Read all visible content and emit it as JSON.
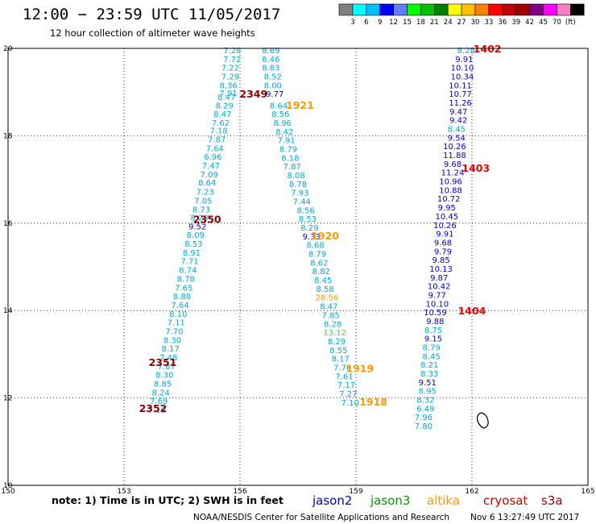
{
  "header": {
    "title": "12:00 − 23:59 UTC 11/05/2017",
    "subtitle": "12 hour collection of altimeter wave heights"
  },
  "colorbar": {
    "colors": [
      "#808080",
      "#00ffff",
      "#00bfff",
      "#0000ff",
      "#6080ff",
      "#00ff00",
      "#00c000",
      "#008000",
      "#ffff00",
      "#ffc000",
      "#ff8000",
      "#ff0000",
      "#c00000",
      "#a00000",
      "#800080",
      "#ff00ff",
      "#ff80c0",
      "#000000"
    ],
    "labels": [
      "3",
      "6",
      "9",
      "12",
      "15",
      "18",
      "21",
      "24",
      "27",
      "30",
      "33",
      "36",
      "39",
      "42",
      "45",
      "70",
      "(ft)"
    ]
  },
  "footer": {
    "note": "note:  1) Time is in UTC;  2) SWH is in feet",
    "satellites": [
      {
        "name": "jason2",
        "color": "#0000cc"
      },
      {
        "name": "jason3",
        "color": "#009900"
      },
      {
        "name": "altika",
        "color": "#ff9900"
      },
      {
        "name": "cryosat",
        "color": "#cc0000"
      },
      {
        "name": "s3a",
        "color": "#990000"
      }
    ],
    "credit": "NOAA/NESDIS Center for Satellite Applications and Research",
    "timestamp": "Nov  6 13:27:49 UTC 2017"
  },
  "chart_data": {
    "type": "scatter",
    "xlim": [
      150,
      165
    ],
    "ylim": [
      10,
      20
    ],
    "x_ticks": [
      "150",
      "153",
      "156",
      "159",
      "162",
      "165"
    ],
    "y_ticks": [
      "10",
      "12",
      "14",
      "16",
      "18",
      "20"
    ],
    "grid": true,
    "colors": {
      "light": "#00aadd",
      "dark": "#0000cc",
      "green": "#44dd44",
      "orange": "#ff9900",
      "cyosat": "#ee0000",
      "s3a": "#880000"
    },
    "series": [
      {
        "name": "s3a",
        "color": "#00aadd",
        "points": [
          {
            "x": 155.8,
            "y": 19.89,
            "v": "7.28",
            "c": "light"
          },
          {
            "x": 155.8,
            "y": 19.69,
            "v": "7.72",
            "c": "light"
          },
          {
            "x": 155.75,
            "y": 19.49,
            "v": "7.22",
            "c": "light"
          },
          {
            "x": 155.75,
            "y": 19.29,
            "v": "7.29",
            "c": "light"
          },
          {
            "x": 155.7,
            "y": 19.09,
            "v": "8.36",
            "c": "light"
          },
          {
            "x": 155.7,
            "y": 18.91,
            "v": "7.91",
            "c": "light"
          },
          {
            "x": 155.65,
            "y": 18.82,
            "v": "8.47",
            "c": "light"
          },
          {
            "x": 155.6,
            "y": 18.63,
            "v": "8.29",
            "c": "light"
          },
          {
            "x": 155.55,
            "y": 18.43,
            "v": "8.47",
            "c": "light"
          },
          {
            "x": 155.5,
            "y": 18.23,
            "v": "7.62",
            "c": "light"
          },
          {
            "x": 155.45,
            "y": 18.05,
            "v": "7.18",
            "c": "light"
          },
          {
            "x": 155.4,
            "y": 17.85,
            "v": "7.87",
            "c": "light"
          },
          {
            "x": 155.35,
            "y": 17.65,
            "v": "7.64",
            "c": "light"
          },
          {
            "x": 155.3,
            "y": 17.45,
            "v": "6.96",
            "c": "light"
          },
          {
            "x": 155.25,
            "y": 17.25,
            "v": "7.47",
            "c": "light"
          },
          {
            "x": 155.2,
            "y": 17.05,
            "v": "7.09",
            "c": "light"
          },
          {
            "x": 155.15,
            "y": 16.86,
            "v": "8.64",
            "c": "light"
          },
          {
            "x": 155.1,
            "y": 16.65,
            "v": "7.23",
            "c": "light"
          },
          {
            "x": 155.05,
            "y": 16.45,
            "v": "7.05",
            "c": "light"
          },
          {
            "x": 155.0,
            "y": 16.25,
            "v": "8.73",
            "c": "light"
          },
          {
            "x": 154.95,
            "y": 16.06,
            "v": "8.23",
            "c": "light"
          },
          {
            "x": 154.9,
            "y": 15.86,
            "v": "9.52",
            "c": "dark"
          },
          {
            "x": 154.85,
            "y": 15.66,
            "v": "8.09",
            "c": "light"
          },
          {
            "x": 154.8,
            "y": 15.46,
            "v": "8.53",
            "c": "light"
          },
          {
            "x": 154.75,
            "y": 15.26,
            "v": "8.91",
            "c": "light"
          },
          {
            "x": 154.7,
            "y": 15.06,
            "v": "7.71",
            "c": "light"
          },
          {
            "x": 154.65,
            "y": 14.86,
            "v": "8.74",
            "c": "light"
          },
          {
            "x": 154.6,
            "y": 14.66,
            "v": "8.78",
            "c": "light"
          },
          {
            "x": 154.55,
            "y": 14.46,
            "v": "7.65",
            "c": "light"
          },
          {
            "x": 154.5,
            "y": 14.26,
            "v": "8.88",
            "c": "light"
          },
          {
            "x": 154.45,
            "y": 14.06,
            "v": "7.64",
            "c": "light"
          },
          {
            "x": 154.4,
            "y": 13.86,
            "v": "8.10",
            "c": "light"
          },
          {
            "x": 154.35,
            "y": 13.66,
            "v": "7.11",
            "c": "light"
          },
          {
            "x": 154.3,
            "y": 13.46,
            "v": "7.70",
            "c": "light"
          },
          {
            "x": 154.25,
            "y": 13.26,
            "v": "8.30",
            "c": "light"
          },
          {
            "x": 154.2,
            "y": 13.06,
            "v": "8.17",
            "c": "light"
          },
          {
            "x": 154.15,
            "y": 12.86,
            "v": "7.48",
            "c": "light"
          },
          {
            "x": 154.1,
            "y": 12.66,
            "v": "7.87",
            "c": "light"
          },
          {
            "x": 154.05,
            "y": 12.46,
            "v": "8.30",
            "c": "light"
          },
          {
            "x": 154.0,
            "y": 12.26,
            "v": "8.85",
            "c": "light"
          },
          {
            "x": 153.95,
            "y": 12.06,
            "v": "8.24",
            "c": "light"
          },
          {
            "x": 153.9,
            "y": 11.86,
            "v": "7.69",
            "c": "light"
          },
          {
            "x": 153.85,
            "y": 11.66,
            "v": "7.16",
            "c": "light"
          }
        ]
      },
      {
        "name": "altika",
        "color": "#00aadd",
        "points": [
          {
            "x": 156.8,
            "y": 19.89,
            "v": "8.69",
            "c": "light"
          },
          {
            "x": 156.8,
            "y": 19.69,
            "v": "8.46",
            "c": "light"
          },
          {
            "x": 156.8,
            "y": 19.49,
            "v": "8.83",
            "c": "light"
          },
          {
            "x": 156.85,
            "y": 19.29,
            "v": "8.52",
            "c": "light"
          },
          {
            "x": 156.85,
            "y": 19.09,
            "v": "8.00",
            "c": "light"
          },
          {
            "x": 156.9,
            "y": 18.89,
            "v": "9.77",
            "c": "dark"
          },
          {
            "x": 157.0,
            "y": 18.63,
            "v": "8.64",
            "c": "light"
          },
          {
            "x": 157.05,
            "y": 18.43,
            "v": "8.56",
            "c": "light"
          },
          {
            "x": 157.1,
            "y": 18.23,
            "v": "8.96",
            "c": "light"
          },
          {
            "x": 157.15,
            "y": 18.03,
            "v": "8.42",
            "c": "light"
          },
          {
            "x": 157.2,
            "y": 17.83,
            "v": "7.91",
            "c": "light"
          },
          {
            "x": 157.25,
            "y": 17.63,
            "v": "8.79",
            "c": "light"
          },
          {
            "x": 157.3,
            "y": 17.43,
            "v": "8.18",
            "c": "light"
          },
          {
            "x": 157.35,
            "y": 17.23,
            "v": "7.87",
            "c": "light"
          },
          {
            "x": 157.45,
            "y": 17.03,
            "v": "8.08",
            "c": "light"
          },
          {
            "x": 157.5,
            "y": 16.83,
            "v": "8.78",
            "c": "light"
          },
          {
            "x": 157.55,
            "y": 16.63,
            "v": "7.93",
            "c": "light"
          },
          {
            "x": 157.6,
            "y": 16.43,
            "v": "7.44",
            "c": "light"
          },
          {
            "x": 157.7,
            "y": 16.23,
            "v": "8.56",
            "c": "light"
          },
          {
            "x": 157.75,
            "y": 16.03,
            "v": "8.53",
            "c": "light"
          },
          {
            "x": 157.8,
            "y": 15.83,
            "v": "8.29",
            "c": "light"
          },
          {
            "x": 157.85,
            "y": 15.63,
            "v": "9.33",
            "c": "dark"
          },
          {
            "x": 157.95,
            "y": 15.43,
            "v": "8.68",
            "c": "light"
          },
          {
            "x": 158.0,
            "y": 15.23,
            "v": "8.79",
            "c": "light"
          },
          {
            "x": 158.05,
            "y": 15.03,
            "v": "8.62",
            "c": "light"
          },
          {
            "x": 158.1,
            "y": 14.83,
            "v": "8.82",
            "c": "light"
          },
          {
            "x": 158.15,
            "y": 14.63,
            "v": "8.45",
            "c": "light"
          },
          {
            "x": 158.2,
            "y": 14.43,
            "v": "8.58",
            "c": "light"
          },
          {
            "x": 158.25,
            "y": 14.23,
            "v": "28.56",
            "c": "orange"
          },
          {
            "x": 158.3,
            "y": 14.03,
            "v": "8.47",
            "c": "light"
          },
          {
            "x": 158.35,
            "y": 13.83,
            "v": "7.85",
            "c": "light"
          },
          {
            "x": 158.4,
            "y": 13.63,
            "v": "8.28",
            "c": "light"
          },
          {
            "x": 158.45,
            "y": 13.43,
            "v": "13.12",
            "c": "green"
          },
          {
            "x": 158.5,
            "y": 13.23,
            "v": "8.29",
            "c": "light"
          },
          {
            "x": 158.55,
            "y": 13.03,
            "v": "8.55",
            "c": "light"
          },
          {
            "x": 158.6,
            "y": 12.83,
            "v": "8.17",
            "c": "light"
          },
          {
            "x": 158.65,
            "y": 12.63,
            "v": "7.76",
            "c": "light"
          },
          {
            "x": 158.7,
            "y": 12.43,
            "v": "7.61",
            "c": "light"
          },
          {
            "x": 158.75,
            "y": 12.23,
            "v": "7.17",
            "c": "light"
          },
          {
            "x": 158.8,
            "y": 12.03,
            "v": "7.27",
            "c": "light"
          },
          {
            "x": 158.85,
            "y": 11.83,
            "v": "7.10",
            "c": "light"
          }
        ]
      },
      {
        "name": "cryosat",
        "color": "#0000cc",
        "points": [
          {
            "x": 161.85,
            "y": 19.89,
            "v": "8.28",
            "c": "light"
          },
          {
            "x": 161.8,
            "y": 19.69,
            "v": "9.91",
            "c": "dark"
          },
          {
            "x": 161.75,
            "y": 19.49,
            "v": "10.10",
            "c": "dark"
          },
          {
            "x": 161.75,
            "y": 19.29,
            "v": "10.34",
            "c": "dark"
          },
          {
            "x": 161.7,
            "y": 19.09,
            "v": "10.11",
            "c": "dark"
          },
          {
            "x": 161.7,
            "y": 18.89,
            "v": "10.77",
            "c": "dark"
          },
          {
            "x": 161.7,
            "y": 18.69,
            "v": "11.26",
            "c": "dark"
          },
          {
            "x": 161.65,
            "y": 18.49,
            "v": "9.47",
            "c": "dark"
          },
          {
            "x": 161.65,
            "y": 18.29,
            "v": "9.42",
            "c": "dark"
          },
          {
            "x": 161.6,
            "y": 18.09,
            "v": "8.45",
            "c": "light"
          },
          {
            "x": 161.6,
            "y": 17.89,
            "v": "9.54",
            "c": "dark"
          },
          {
            "x": 161.55,
            "y": 17.69,
            "v": "10.26",
            "c": "dark"
          },
          {
            "x": 161.55,
            "y": 17.49,
            "v": "11.88",
            "c": "dark"
          },
          {
            "x": 161.5,
            "y": 17.29,
            "v": "9.68",
            "c": "dark"
          },
          {
            "x": 161.5,
            "y": 17.09,
            "v": "11.24",
            "c": "dark"
          },
          {
            "x": 161.45,
            "y": 16.89,
            "v": "10.96",
            "c": "dark"
          },
          {
            "x": 161.45,
            "y": 16.69,
            "v": "10.88",
            "c": "dark"
          },
          {
            "x": 161.4,
            "y": 16.49,
            "v": "10.72",
            "c": "dark"
          },
          {
            "x": 161.35,
            "y": 16.29,
            "v": "9.95",
            "c": "dark"
          },
          {
            "x": 161.35,
            "y": 16.09,
            "v": "10.45",
            "c": "dark"
          },
          {
            "x": 161.3,
            "y": 15.89,
            "v": "10.26",
            "c": "dark"
          },
          {
            "x": 161.3,
            "y": 15.69,
            "v": "9.91",
            "c": "dark"
          },
          {
            "x": 161.25,
            "y": 15.49,
            "v": "9.68",
            "c": "dark"
          },
          {
            "x": 161.25,
            "y": 15.29,
            "v": "9.79",
            "c": "dark"
          },
          {
            "x": 161.2,
            "y": 15.09,
            "v": "9.85",
            "c": "dark"
          },
          {
            "x": 161.2,
            "y": 14.89,
            "v": "10.13",
            "c": "dark"
          },
          {
            "x": 161.15,
            "y": 14.69,
            "v": "9.87",
            "c": "dark"
          },
          {
            "x": 161.15,
            "y": 14.49,
            "v": "10.42",
            "c": "dark"
          },
          {
            "x": 161.1,
            "y": 14.29,
            "v": "9.77",
            "c": "dark"
          },
          {
            "x": 161.1,
            "y": 14.09,
            "v": "10.10",
            "c": "dark"
          },
          {
            "x": 161.05,
            "y": 13.89,
            "v": "10.59",
            "c": "dark"
          },
          {
            "x": 161.05,
            "y": 13.69,
            "v": "9.88",
            "c": "dark"
          },
          {
            "x": 161.0,
            "y": 13.49,
            "v": "8.75",
            "c": "light"
          },
          {
            "x": 161.0,
            "y": 13.29,
            "v": "9.15",
            "c": "dark"
          },
          {
            "x": 160.95,
            "y": 13.09,
            "v": "8.79",
            "c": "light"
          },
          {
            "x": 160.95,
            "y": 12.89,
            "v": "8.45",
            "c": "light"
          },
          {
            "x": 160.9,
            "y": 12.69,
            "v": "8.21",
            "c": "light"
          },
          {
            "x": 160.9,
            "y": 12.49,
            "v": "8.33",
            "c": "light"
          },
          {
            "x": 160.85,
            "y": 12.29,
            "v": "9.51",
            "c": "dark"
          },
          {
            "x": 160.85,
            "y": 12.09,
            "v": "8.95",
            "c": "light"
          },
          {
            "x": 160.8,
            "y": 11.89,
            "v": "8.32",
            "c": "light"
          },
          {
            "x": 160.8,
            "y": 11.69,
            "v": "6.49",
            "c": "light"
          },
          {
            "x": 160.75,
            "y": 11.49,
            "v": "7.96",
            "c": "light"
          },
          {
            "x": 160.75,
            "y": 11.29,
            "v": "7.80",
            "c": "light"
          }
        ]
      }
    ],
    "annotations": [
      {
        "x": 156.35,
        "y": 18.87,
        "v": "2349",
        "c": "s3a"
      },
      {
        "x": 155.15,
        "y": 16.01,
        "v": "2350",
        "c": "s3a"
      },
      {
        "x": 154.0,
        "y": 12.73,
        "v": "2351",
        "c": "s3a"
      },
      {
        "x": 153.75,
        "y": 11.68,
        "v": "2352",
        "c": "s3a"
      },
      {
        "x": 157.55,
        "y": 18.62,
        "v": "1921",
        "c": "orange"
      },
      {
        "x": 158.2,
        "y": 15.63,
        "v": "1920",
        "c": "orange"
      },
      {
        "x": 159.1,
        "y": 12.59,
        "v": "1919",
        "c": "orange"
      },
      {
        "x": 159.45,
        "y": 11.83,
        "v": "1918",
        "c": "orange"
      },
      {
        "x": 162.4,
        "y": 19.91,
        "v": "1402",
        "c": "cyosat"
      },
      {
        "x": 162.1,
        "y": 17.18,
        "v": "1403",
        "c": "cyosat"
      },
      {
        "x": 162.0,
        "y": 13.91,
        "v": "1404",
        "c": "cyosat"
      }
    ]
  }
}
